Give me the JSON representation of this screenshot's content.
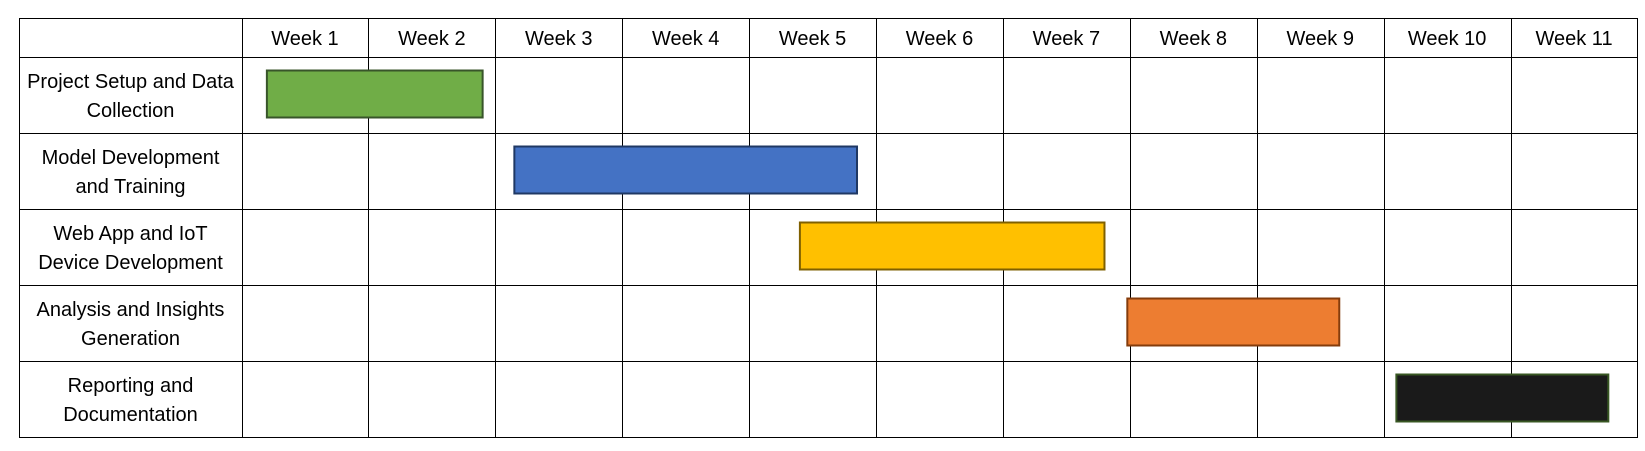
{
  "chart_data": {
    "type": "gantt",
    "title": "",
    "columns": [
      "Week 1",
      "Week 2",
      "Week 3",
      "Week 4",
      "Week 5",
      "Week 6",
      "Week 7",
      "Week 8",
      "Week 9",
      "Week 10",
      "Week 11"
    ],
    "tasks": [
      {
        "label_lines": [
          "Project Setup and Data",
          "Collection"
        ],
        "start_week": 1.2,
        "end_week": 2.9,
        "color": "#70AD47",
        "border": "#38552A"
      },
      {
        "label_lines": [
          "Model Development",
          "and Training"
        ],
        "start_week": 3.15,
        "end_week": 5.85,
        "color": "#4472C4",
        "border": "#1F3864"
      },
      {
        "label_lines": [
          "Web App and IoT",
          "Device Development"
        ],
        "start_week": 5.4,
        "end_week": 7.8,
        "color": "#FFC000",
        "border": "#7F6000"
      },
      {
        "label_lines": [
          "Analysis and Insights",
          "Generation"
        ],
        "start_week": 7.98,
        "end_week": 9.65,
        "color": "#ED7D31",
        "border": "#843C0C"
      },
      {
        "label_lines": [
          "Reporting and",
          "Documentation"
        ],
        "start_week": 10.1,
        "end_week": 11.77,
        "color": "#1A1A1A",
        "border": "#385723"
      }
    ],
    "grid": true,
    "legend": "none"
  }
}
